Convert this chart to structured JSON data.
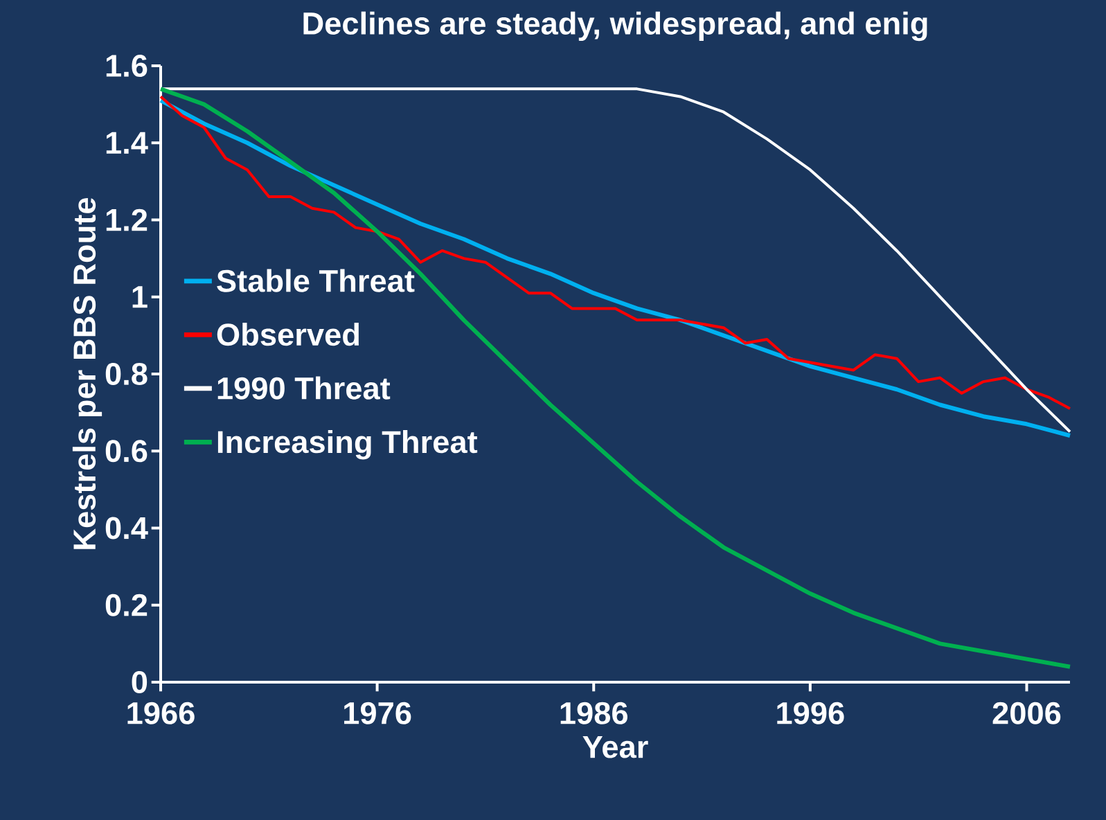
{
  "chart_data": {
    "type": "line",
    "title": "Declines are steady, widespread, and enig",
    "xlabel": "Year",
    "ylabel": "Kestrels per BBS Route",
    "xlim": [
      1966,
      2008
    ],
    "ylim": [
      0,
      1.6
    ],
    "xticks": [
      1966,
      1976,
      1986,
      1996,
      2006
    ],
    "yticks": [
      0,
      0.2,
      0.4,
      0.6,
      0.8,
      1,
      1.2,
      1.4,
      1.6
    ],
    "grid": false,
    "legend": "left",
    "marker": "none",
    "line_style": "solid",
    "series": [
      {
        "name": "Stable Threat",
        "color": "#00b0f0",
        "x": [
          1966,
          1968,
          1970,
          1972,
          1974,
          1976,
          1978,
          1980,
          1982,
          1984,
          1986,
          1988,
          1990,
          1992,
          1994,
          1996,
          1998,
          2000,
          2002,
          2004,
          2006,
          2008
        ],
        "values": [
          1.51,
          1.45,
          1.4,
          1.34,
          1.29,
          1.24,
          1.19,
          1.15,
          1.1,
          1.06,
          1.01,
          0.97,
          0.94,
          0.9,
          0.86,
          0.82,
          0.79,
          0.76,
          0.72,
          0.69,
          0.67,
          0.64
        ]
      },
      {
        "name": "Observed",
        "color": "#ff0000",
        "x": [
          1966,
          1967,
          1968,
          1969,
          1970,
          1971,
          1972,
          1973,
          1974,
          1975,
          1976,
          1977,
          1978,
          1979,
          1980,
          1981,
          1982,
          1983,
          1984,
          1985,
          1986,
          1987,
          1988,
          1989,
          1990,
          1991,
          1992,
          1993,
          1994,
          1995,
          1996,
          1997,
          1998,
          1999,
          2000,
          2001,
          2002,
          2003,
          2004,
          2005,
          2006,
          2007,
          2008
        ],
        "values": [
          1.52,
          1.47,
          1.44,
          1.36,
          1.33,
          1.26,
          1.26,
          1.23,
          1.22,
          1.18,
          1.17,
          1.15,
          1.09,
          1.12,
          1.1,
          1.09,
          1.05,
          1.01,
          1.01,
          0.97,
          0.97,
          0.97,
          0.94,
          0.94,
          0.94,
          0.93,
          0.92,
          0.88,
          0.89,
          0.84,
          0.83,
          0.82,
          0.81,
          0.85,
          0.84,
          0.78,
          0.79,
          0.75,
          0.78,
          0.79,
          0.76,
          0.74,
          0.71
        ]
      },
      {
        "name": "1990 Threat",
        "color": "#ffffff",
        "x": [
          1966,
          1988,
          1990,
          1992,
          1994,
          1996,
          1998,
          2000,
          2002,
          2004,
          2006,
          2008
        ],
        "values": [
          1.54,
          1.54,
          1.52,
          1.48,
          1.41,
          1.33,
          1.23,
          1.12,
          1.0,
          0.88,
          0.76,
          0.65
        ]
      },
      {
        "name": "Increasing Threat",
        "color": "#00b050",
        "x": [
          1966,
          1968,
          1970,
          1972,
          1974,
          1976,
          1978,
          1980,
          1982,
          1984,
          1986,
          1988,
          1990,
          1992,
          1994,
          1996,
          1998,
          2000,
          2002,
          2004,
          2006,
          2008
        ],
        "values": [
          1.54,
          1.5,
          1.43,
          1.35,
          1.27,
          1.17,
          1.06,
          0.94,
          0.83,
          0.72,
          0.62,
          0.52,
          0.43,
          0.35,
          0.29,
          0.23,
          0.18,
          0.14,
          0.1,
          0.08,
          0.06,
          0.04
        ]
      }
    ]
  }
}
